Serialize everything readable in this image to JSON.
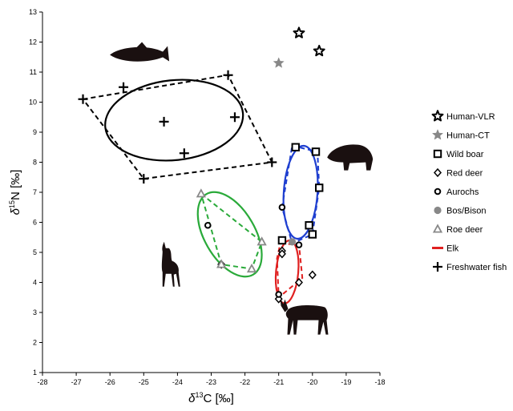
{
  "chart_data": {
    "type": "scatter",
    "xlabel": "δ13C [‰]",
    "ylabel": "δ15N [‰]",
    "xlim": [
      -28,
      -18
    ],
    "ylim": [
      1,
      13
    ],
    "x_ticks": [
      -28,
      -27,
      -26,
      -25,
      -24,
      -23,
      -22,
      -21,
      -20,
      -19,
      -18
    ],
    "y_ticks": [
      1,
      2,
      3,
      4,
      5,
      6,
      7,
      8,
      9,
      10,
      11,
      12,
      13
    ],
    "grid": false,
    "legend_position": "right",
    "series": [
      {
        "name": "Human-VLR",
        "marker": "star-open",
        "color": "#000000",
        "points": [
          [
            -20.4,
            12.3
          ],
          [
            -19.8,
            11.7
          ]
        ]
      },
      {
        "name": "Human-CT",
        "marker": "star-filled",
        "color": "#888888",
        "points": [
          [
            -21.0,
            11.3
          ]
        ]
      },
      {
        "name": "Wild boar",
        "marker": "square",
        "color": "#000000",
        "points": [
          [
            -20.5,
            8.5
          ],
          [
            -19.9,
            8.35
          ],
          [
            -19.8,
            7.15
          ],
          [
            -20.1,
            5.9
          ],
          [
            -20.0,
            5.6
          ],
          [
            -20.9,
            5.4
          ]
        ]
      },
      {
        "name": "Red deer",
        "marker": "diamond",
        "color": "#000000",
        "points": [
          [
            -20.9,
            5.05
          ],
          [
            -20.9,
            4.95
          ],
          [
            -20.4,
            4.0
          ],
          [
            -20.0,
            4.25
          ],
          [
            -21.0,
            3.45
          ],
          [
            -22.7,
            4.6
          ]
        ]
      },
      {
        "name": "Aurochs",
        "marker": "circle-open",
        "color": "#000000",
        "points": [
          [
            -20.9,
            6.5
          ],
          [
            -23.1,
            5.9
          ],
          [
            -20.4,
            5.25
          ],
          [
            -21.0,
            3.6
          ]
        ]
      },
      {
        "name": "Bos/Bison",
        "marker": "circle-filled",
        "color": "#888888",
        "points": [
          [
            -20.6,
            5.35
          ]
        ]
      },
      {
        "name": "Roe deer",
        "marker": "triangle",
        "color": "#888888",
        "points": [
          [
            -23.3,
            6.95
          ],
          [
            -21.5,
            5.35
          ],
          [
            -21.8,
            4.45
          ],
          [
            -22.7,
            4.6
          ]
        ]
      },
      {
        "name": "Elk",
        "marker": "line",
        "color": "#e02020",
        "points": []
      },
      {
        "name": "Freshwater fish",
        "marker": "cross",
        "color": "#000000",
        "points": [
          [
            -26.8,
            10.1
          ],
          [
            -25.6,
            10.5
          ],
          [
            -22.5,
            10.9
          ],
          [
            -22.3,
            9.5
          ],
          [
            -24.4,
            9.35
          ],
          [
            -23.8,
            8.3
          ],
          [
            -21.2,
            8.0
          ],
          [
            -25.0,
            7.45
          ]
        ]
      }
    ],
    "hulls": [
      {
        "group": "Freshwater fish",
        "color": "#000000",
        "points": [
          [
            -26.8,
            10.1
          ],
          [
            -22.5,
            10.9
          ],
          [
            -21.2,
            8.0
          ],
          [
            -25.0,
            7.45
          ]
        ]
      },
      {
        "group": "Wild boar",
        "color": "#1f3fd0",
        "points": [
          [
            -20.6,
            8.55
          ],
          [
            -19.85,
            8.35
          ],
          [
            -19.8,
            7.15
          ],
          [
            -20.0,
            5.6
          ],
          [
            -20.6,
            5.3
          ],
          [
            -20.9,
            6.5
          ]
        ]
      },
      {
        "group": "Roe deer",
        "color": "#2aaa3a",
        "points": [
          [
            -23.3,
            6.95
          ],
          [
            -21.5,
            5.35
          ],
          [
            -21.8,
            4.45
          ],
          [
            -22.7,
            4.6
          ]
        ]
      },
      {
        "group": "Elk",
        "color": "#e02020",
        "points": [
          [
            -20.95,
            5.3
          ],
          [
            -20.4,
            5.25
          ],
          [
            -20.3,
            4.15
          ],
          [
            -21.0,
            3.5
          ],
          [
            -21.05,
            4.8
          ]
        ]
      }
    ],
    "ellipses": [
      {
        "group": "Freshwater fish",
        "color": "#000000",
        "cx": -24.1,
        "cy": 9.4,
        "rx": 2.05,
        "ry": 1.33,
        "rotate": -6
      },
      {
        "group": "Wild boar",
        "color": "#1f3fd0",
        "cx": -20.35,
        "cy": 7.0,
        "rx": 0.5,
        "ry": 1.55,
        "rotate": 4
      },
      {
        "group": "Roe deer",
        "color": "#2aaa3a",
        "cx": -22.45,
        "cy": 5.6,
        "rx": 0.75,
        "ry": 1.55,
        "rotate": -30
      },
      {
        "group": "Elk",
        "color": "#e02020",
        "cx": -20.75,
        "cy": 4.35,
        "rx": 0.33,
        "ry": 1.05,
        "rotate": 5
      }
    ],
    "silhouettes": [
      {
        "name": "fish-silhouette",
        "x": -25.1,
        "y": 11.6
      },
      {
        "name": "boar-silhouette",
        "x": -18.85,
        "y": 8.05
      },
      {
        "name": "roe-deer-silhouette",
        "x": -24.3,
        "y": 4.5
      },
      {
        "name": "elk-silhouette",
        "x": -20.15,
        "y": 2.85
      }
    ]
  }
}
